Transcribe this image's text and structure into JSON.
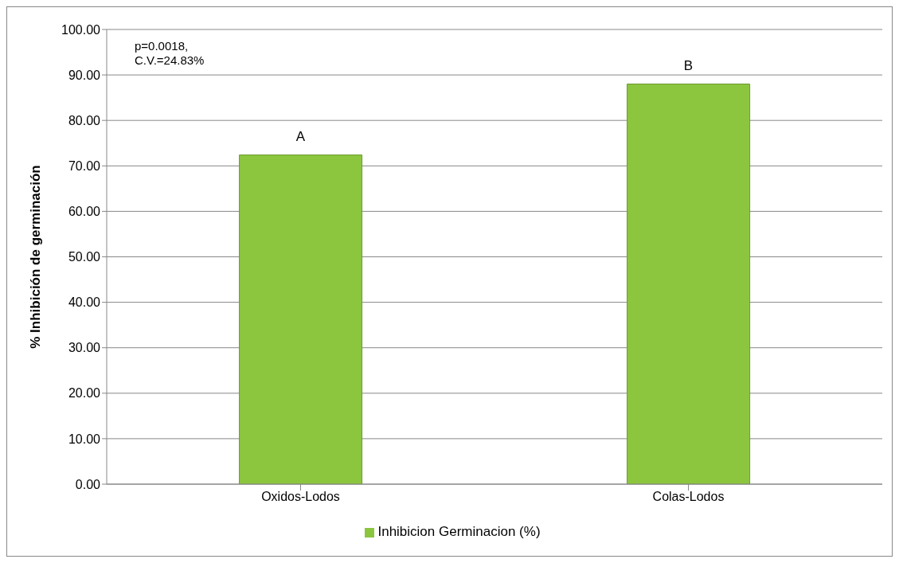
{
  "chart_data": {
    "type": "bar",
    "ylabel": "% Inhibición de germinación",
    "categories": [
      "Oxidos-Lodos",
      "Colas-Lodos"
    ],
    "series": [
      {
        "name": "Inhibicion Germinacion (%)",
        "color": "#8cc63f",
        "values": [
          72.4,
          88.0
        ]
      }
    ],
    "ylim": [
      0,
      100
    ],
    "yticks": [
      {
        "value": 0,
        "label": "0.00"
      },
      {
        "value": 10,
        "label": "10.00"
      },
      {
        "value": 20,
        "label": "20.00"
      },
      {
        "value": 30,
        "label": "30.00"
      },
      {
        "value": 40,
        "label": "40.00"
      },
      {
        "value": 50,
        "label": "50.00"
      },
      {
        "value": 60,
        "label": "60.00"
      },
      {
        "value": 70,
        "label": "70.00"
      },
      {
        "value": 80,
        "label": "80.00"
      },
      {
        "value": 90,
        "label": "90.00"
      },
      {
        "value": 100,
        "label": "100.00"
      }
    ],
    "grid": "y",
    "legend": "bottom",
    "annotations": [
      "p=0.0018,\nC.V.=24.83%",
      {
        "text": "A",
        "x": "Oxidos-Lodos",
        "y": 72.4
      },
      {
        "text": "B",
        "x": "Colas-Lodos",
        "y": 88.0
      }
    ]
  }
}
